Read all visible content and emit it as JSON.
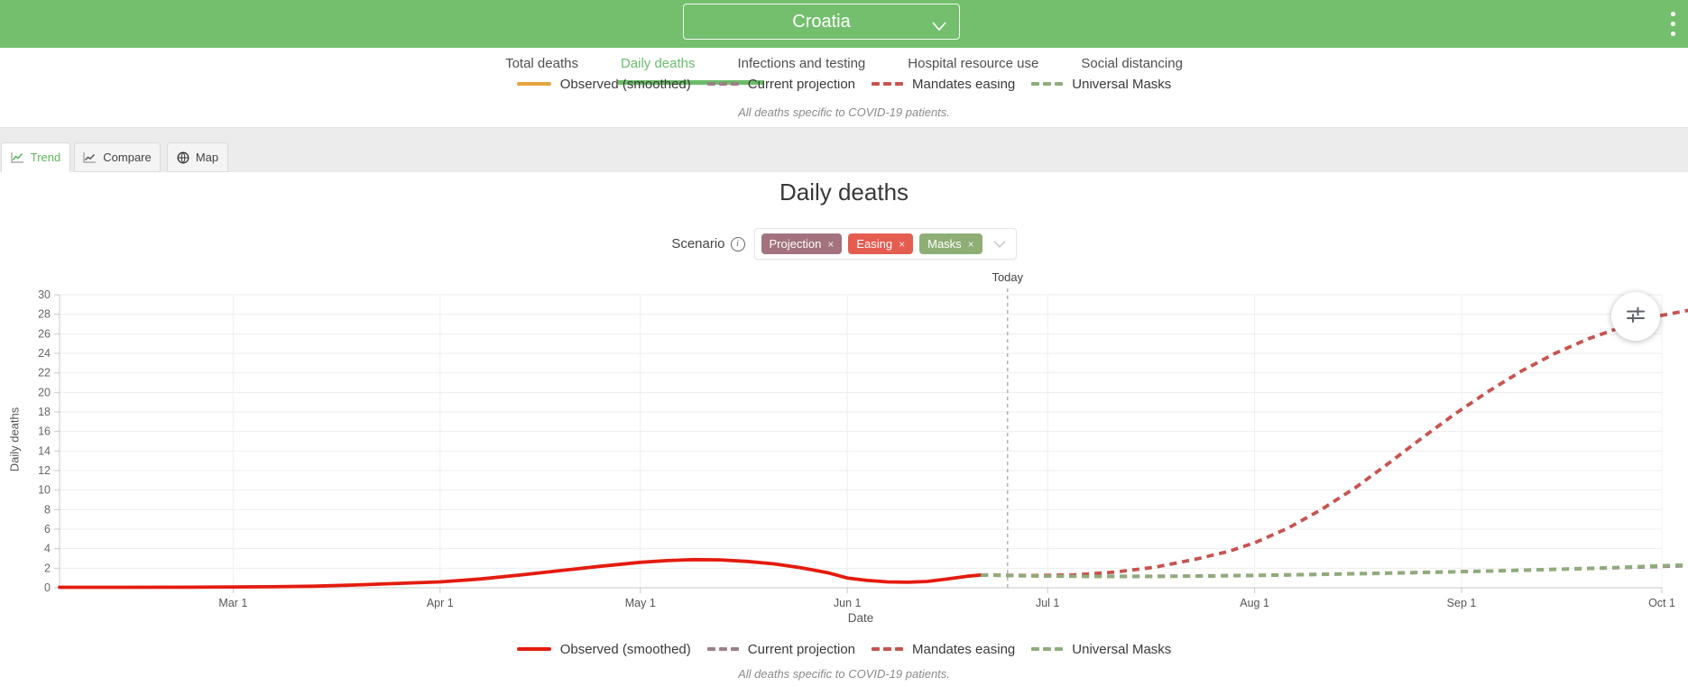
{
  "header": {
    "location": "Croatia"
  },
  "nav": {
    "items": [
      {
        "label": "Total deaths",
        "active": false
      },
      {
        "label": "Daily deaths",
        "active": true
      },
      {
        "label": "Infections and testing",
        "active": false
      },
      {
        "label": "Hospital resource use",
        "active": false
      },
      {
        "label": "Social distancing",
        "active": false
      }
    ]
  },
  "top_panel": {
    "legend": [
      {
        "label": "Observed (smoothed)",
        "color": "#e6a33e",
        "dash": false
      },
      {
        "label": "Current projection",
        "color": "#9b7f89",
        "dash": true
      },
      {
        "label": "Mandates easing",
        "color": "#c7544f",
        "dash": true
      },
      {
        "label": "Universal Masks",
        "color": "#8ead7b",
        "dash": true
      }
    ],
    "note": "All deaths specific to COVID-19 patients."
  },
  "view_tabs": {
    "items": [
      {
        "label": "Trend",
        "icon": "trend-icon",
        "active": true
      },
      {
        "label": "Compare",
        "icon": "compare-icon",
        "active": false
      },
      {
        "label": "Map",
        "icon": "globe-icon",
        "active": false
      }
    ]
  },
  "main": {
    "title": "Daily deaths",
    "scenario_label": "Scenario",
    "scenario_tags": [
      {
        "label": "Projection",
        "color": "#a2737d"
      },
      {
        "label": "Easing",
        "color": "#e55c50"
      },
      {
        "label": "Masks",
        "color": "#8fae76"
      }
    ]
  },
  "chart_data": {
    "type": "line",
    "title": "Daily deaths",
    "xlabel": "Date",
    "ylabel": "Daily deaths",
    "ylim": [
      0,
      30
    ],
    "ytick_step": 2,
    "grid": true,
    "x_domain_days": [
      0,
      240
    ],
    "xticks": [
      {
        "day": 26,
        "label": "Mar 1"
      },
      {
        "day": 57,
        "label": "Apr 1"
      },
      {
        "day": 87,
        "label": "May 1"
      },
      {
        "day": 118,
        "label": "Jun 1"
      },
      {
        "day": 148,
        "label": "Jul 1"
      },
      {
        "day": 179,
        "label": "Aug 1"
      },
      {
        "day": 210,
        "label": "Sep 1"
      },
      {
        "day": 240,
        "label": "Oct 1"
      }
    ],
    "today": {
      "day": 142,
      "label": "Today"
    },
    "series": [
      {
        "name": "Observed (smoothed)",
        "color": "#e41b0f",
        "dash": false,
        "points": [
          [
            0,
            0.05
          ],
          [
            10,
            0.05
          ],
          [
            20,
            0.06
          ],
          [
            26,
            0.08
          ],
          [
            32,
            0.1
          ],
          [
            38,
            0.16
          ],
          [
            44,
            0.28
          ],
          [
            50,
            0.42
          ],
          [
            57,
            0.6
          ],
          [
            63,
            0.9
          ],
          [
            69,
            1.3
          ],
          [
            75,
            1.75
          ],
          [
            81,
            2.2
          ],
          [
            87,
            2.6
          ],
          [
            91,
            2.78
          ],
          [
            95,
            2.88
          ],
          [
            99,
            2.85
          ],
          [
            103,
            2.7
          ],
          [
            107,
            2.45
          ],
          [
            111,
            2.05
          ],
          [
            115,
            1.55
          ],
          [
            118,
            1.0
          ],
          [
            121,
            0.75
          ],
          [
            124,
            0.6
          ],
          [
            127,
            0.56
          ],
          [
            130,
            0.65
          ],
          [
            133,
            0.9
          ],
          [
            136,
            1.18
          ],
          [
            138,
            1.3
          ]
        ]
      },
      {
        "name": "Current projection",
        "color": "#9b7f89",
        "dash": true,
        "points": [
          [
            138,
            1.3
          ],
          [
            146,
            1.22
          ],
          [
            154,
            1.18
          ],
          [
            162,
            1.17
          ],
          [
            170,
            1.2
          ],
          [
            179,
            1.27
          ],
          [
            188,
            1.37
          ],
          [
            197,
            1.48
          ],
          [
            206,
            1.6
          ],
          [
            215,
            1.73
          ],
          [
            224,
            1.88
          ],
          [
            232,
            2.02
          ],
          [
            240,
            2.18
          ],
          [
            244,
            2.25
          ]
        ]
      },
      {
        "name": "Mandates easing",
        "color": "#c7544f",
        "dash": true,
        "points": [
          [
            138,
            1.3
          ],
          [
            146,
            1.25
          ],
          [
            152,
            1.32
          ],
          [
            158,
            1.6
          ],
          [
            164,
            2.1
          ],
          [
            170,
            2.9
          ],
          [
            175,
            3.7
          ],
          [
            179,
            4.6
          ],
          [
            184,
            6.1
          ],
          [
            189,
            8.0
          ],
          [
            194,
            10.2
          ],
          [
            199,
            12.7
          ],
          [
            204,
            15.3
          ],
          [
            209,
            17.8
          ],
          [
            214,
            20.1
          ],
          [
            219,
            22.2
          ],
          [
            224,
            24.0
          ],
          [
            229,
            25.5
          ],
          [
            234,
            26.7
          ],
          [
            240,
            27.9
          ],
          [
            244,
            28.4
          ]
        ]
      },
      {
        "name": "Universal Masks",
        "color": "#8ead7b",
        "dash": true,
        "points": [
          [
            138,
            1.3
          ],
          [
            146,
            1.2
          ],
          [
            154,
            1.15
          ],
          [
            162,
            1.14
          ],
          [
            170,
            1.18
          ],
          [
            179,
            1.25
          ],
          [
            188,
            1.35
          ],
          [
            197,
            1.46
          ],
          [
            206,
            1.58
          ],
          [
            215,
            1.72
          ],
          [
            224,
            1.88
          ],
          [
            232,
            2.05
          ],
          [
            240,
            2.25
          ],
          [
            244,
            2.35
          ]
        ]
      }
    ]
  },
  "bottom": {
    "note": "All deaths specific to COVID-19 patients."
  }
}
